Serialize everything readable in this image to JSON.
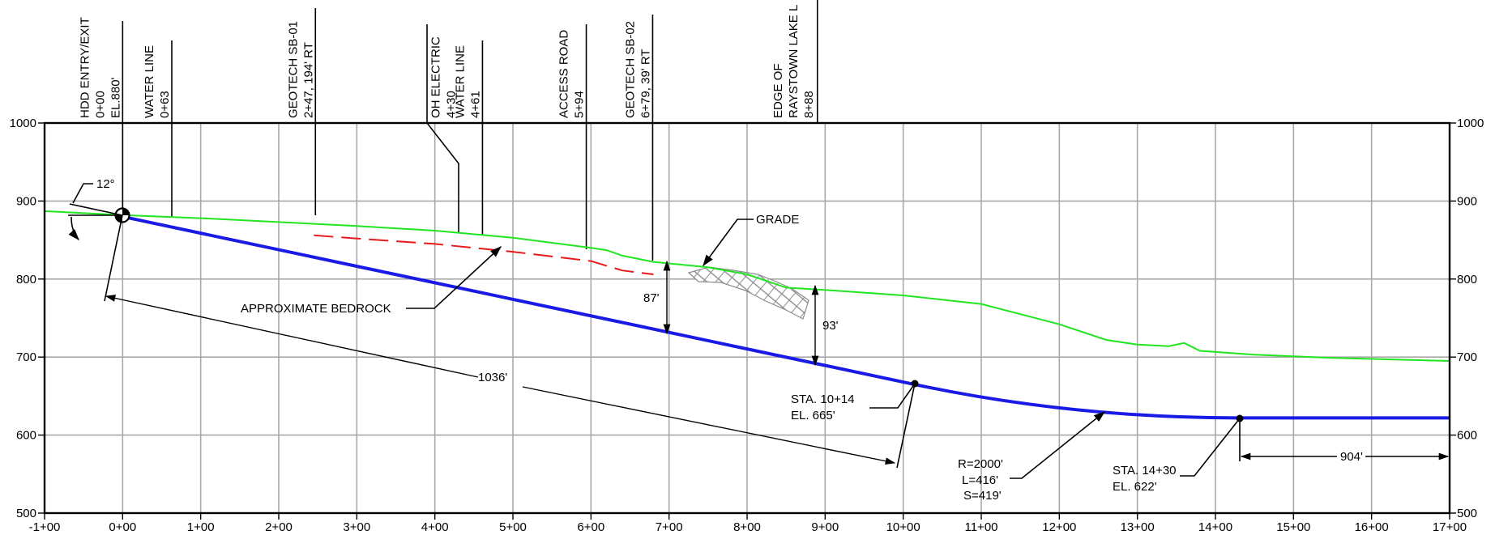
{
  "station_axis": {
    "min": -100,
    "max": 1700,
    "ticks": [
      {
        "sta": -100,
        "label": "-1+00"
      },
      {
        "sta": 0,
        "label": "0+00"
      },
      {
        "sta": 100,
        "label": "1+00"
      },
      {
        "sta": 200,
        "label": "2+00"
      },
      {
        "sta": 300,
        "label": "3+00"
      },
      {
        "sta": 400,
        "label": "4+00"
      },
      {
        "sta": 500,
        "label": "5+00"
      },
      {
        "sta": 600,
        "label": "6+00"
      },
      {
        "sta": 700,
        "label": "7+00"
      },
      {
        "sta": 800,
        "label": "8+00"
      },
      {
        "sta": 900,
        "label": "9+00"
      },
      {
        "sta": 1000,
        "label": "10+00"
      },
      {
        "sta": 1100,
        "label": "11+00"
      },
      {
        "sta": 1200,
        "label": "12+00"
      },
      {
        "sta": 1300,
        "label": "13+00"
      },
      {
        "sta": 1400,
        "label": "14+00"
      },
      {
        "sta": 1500,
        "label": "15+00"
      },
      {
        "sta": 1600,
        "label": "16+00"
      },
      {
        "sta": 1700,
        "label": "17+00"
      }
    ]
  },
  "elevation_axis": {
    "min": 500,
    "max": 1000,
    "ticks": [
      {
        "el": 1000,
        "label": "1000"
      },
      {
        "el": 900,
        "label": "900"
      },
      {
        "el": 800,
        "label": "800"
      },
      {
        "el": 700,
        "label": "700"
      },
      {
        "el": 600,
        "label": "600"
      },
      {
        "el": 500,
        "label": "500"
      }
    ]
  },
  "colors": {
    "grade": "#22e522",
    "bore_path": "#1a1ae6",
    "bedrock": "#e61a1a",
    "grid": "#a8a8a8",
    "hatch": "#8c8c8c"
  },
  "grade_profile": [
    [
      -100,
      887
    ],
    [
      0,
      882
    ],
    [
      100,
      878
    ],
    [
      200,
      873
    ],
    [
      300,
      868
    ],
    [
      400,
      862
    ],
    [
      500,
      853
    ],
    [
      600,
      840
    ],
    [
      620,
      837
    ],
    [
      640,
      830
    ],
    [
      680,
      822
    ],
    [
      700,
      820
    ],
    [
      750,
      815
    ],
    [
      800,
      806
    ],
    [
      850,
      789
    ],
    [
      900,
      786
    ],
    [
      1000,
      779
    ],
    [
      1100,
      768
    ],
    [
      1150,
      755
    ],
    [
      1200,
      742
    ],
    [
      1260,
      722
    ],
    [
      1300,
      716
    ],
    [
      1340,
      714
    ],
    [
      1360,
      718
    ],
    [
      1380,
      708
    ],
    [
      1450,
      703
    ],
    [
      1550,
      699
    ],
    [
      1700,
      695
    ]
  ],
  "bedrock_profile": [
    [
      245,
      856
    ],
    [
      300,
      852
    ],
    [
      400,
      845
    ],
    [
      500,
      835
    ],
    [
      600,
      823
    ],
    [
      620,
      817
    ],
    [
      640,
      811
    ],
    [
      680,
      806
    ]
  ],
  "bore_path": {
    "entry": {
      "sta": 0,
      "el": 880
    },
    "pc": {
      "sta": 1014,
      "el": 665
    },
    "pt": {
      "sta": 1430,
      "el": 622
    },
    "end": {
      "sta": 1700,
      "el": 622
    }
  },
  "labels": {
    "entry_angle": "12°",
    "grade": "GRADE",
    "bedrock": "APPROXIMATE BEDROCK",
    "tangent_length": "1036'",
    "cover_1": "87'",
    "cover_2": "93'",
    "pc_sta": "STA. 10+14",
    "pc_el": "EL. 665'",
    "pt_sta": "STA. 14+30",
    "pt_el": "EL. 622'",
    "curve_r": "R=2000'",
    "curve_l": "L=416'",
    "curve_s": "S=419'",
    "end_length": "904'"
  },
  "features": [
    {
      "sta": 0,
      "lines": [
        "HDD ENTRY/EXIT",
        "0+00",
        "EL.880'"
      ]
    },
    {
      "sta": 63,
      "lines": [
        "WATER LINE",
        "0+63"
      ]
    },
    {
      "sta": 247,
      "lines": [
        "GEOTECH SB-01",
        "2+47, 194' RT"
      ]
    },
    {
      "sta": 430,
      "lines": [
        "OH ELECTRIC",
        "4+30"
      ]
    },
    {
      "sta": 461,
      "lines": [
        "WATER LINE",
        "4+61"
      ]
    },
    {
      "sta": 594,
      "lines": [
        "ACCESS ROAD",
        "5+94"
      ]
    },
    {
      "sta": 679,
      "lines": [
        "GEOTECH SB-02",
        "6+79, 39' RT"
      ]
    },
    {
      "sta": 888,
      "lines": [
        "EDGE OF",
        "RAYSTOWN LAKE L",
        "8+88"
      ]
    }
  ]
}
